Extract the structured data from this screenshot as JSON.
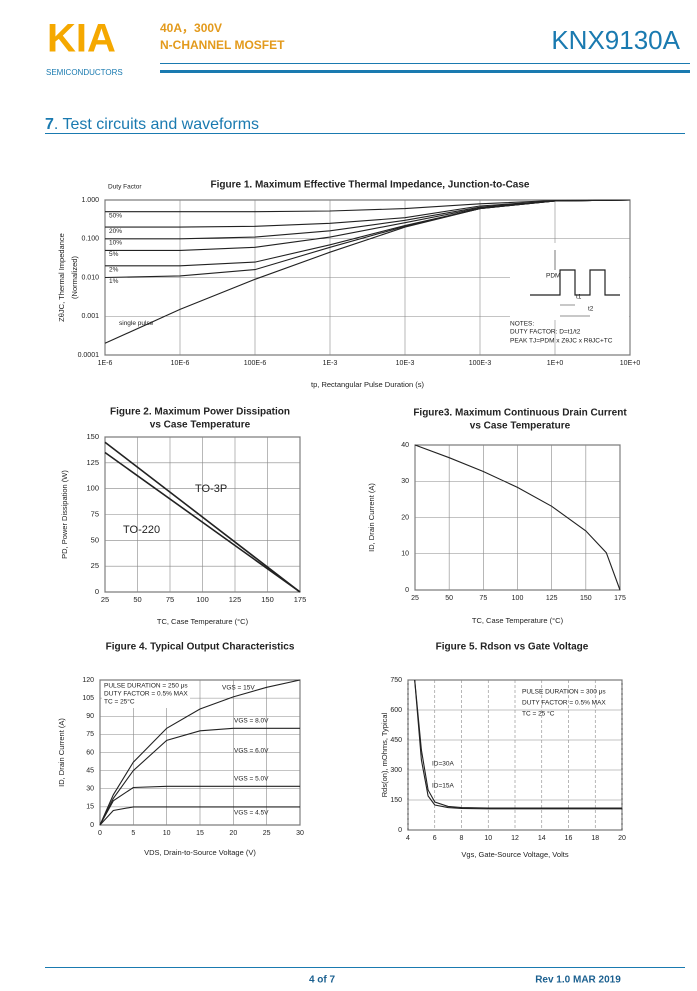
{
  "header": {
    "logo": "KIA",
    "logo_sub": "SEMICONDUCTORS",
    "rating": "40A，300V",
    "device_type": "N-CHANNEL MOSFET",
    "part_number": "KNX9130A"
  },
  "section": {
    "number": "7",
    "title": ". Test circuits and waveforms"
  },
  "figures": [
    {
      "type": "line",
      "title": "Figure 1. Maximum Effective Thermal Impedance, Junction-to-Case",
      "xlabel": "tp, Rectangular Pulse Duration (s)",
      "ylabel": "ZθJC, Thermal Impedance",
      "ylabel_sub": "(Normalized)",
      "xscale": "log",
      "yscale": "log",
      "grid": true,
      "color": "#222",
      "xlim": [
        1e-06,
        10
      ],
      "ylim": [
        0.0001,
        1
      ],
      "xticks": [
        {
          "value": 1e-06,
          "label": "1E-6"
        },
        {
          "value": 1e-05,
          "label": "10E-6"
        },
        {
          "value": 0.0001,
          "label": "100E-6"
        },
        {
          "value": 0.001,
          "label": "1E-3"
        },
        {
          "value": 0.01,
          "label": "10E-3"
        },
        {
          "value": 0.1,
          "label": "100E-3"
        },
        {
          "value": 1,
          "label": "1E+0"
        },
        {
          "value": 10,
          "label": "10E+0"
        }
      ],
      "yticks": [
        {
          "value": 0.0001,
          "label": "0.0001"
        },
        {
          "value": 0.001,
          "label": "0.001"
        },
        {
          "value": 0.01,
          "label": "0.010"
        },
        {
          "value": 0.1,
          "label": "0.100"
        },
        {
          "value": 1,
          "label": "1.000"
        }
      ],
      "series": [
        {
          "name": "50%",
          "x": [
            1e-06,
            1e-05,
            0.0001,
            0.001,
            0.01,
            0.1,
            1,
            10
          ],
          "values": [
            0.5,
            0.5,
            0.5,
            0.52,
            0.6,
            0.8,
            0.97,
            1.0
          ]
        },
        {
          "name": "20%",
          "x": [
            1e-06,
            1e-05,
            0.0001,
            0.001,
            0.01,
            0.1,
            1,
            10
          ],
          "values": [
            0.2,
            0.2,
            0.21,
            0.25,
            0.35,
            0.7,
            0.95,
            1.0
          ]
        },
        {
          "name": "10%",
          "x": [
            1e-06,
            1e-05,
            0.0001,
            0.001,
            0.01,
            0.1,
            1,
            10
          ],
          "values": [
            0.1,
            0.1,
            0.11,
            0.16,
            0.3,
            0.65,
            0.95,
            1.0
          ]
        },
        {
          "name": "5%",
          "x": [
            1e-06,
            1e-05,
            0.0001,
            0.001,
            0.01,
            0.1,
            1,
            10
          ],
          "values": [
            0.05,
            0.05,
            0.06,
            0.11,
            0.26,
            0.62,
            0.95,
            1.0
          ]
        },
        {
          "name": "2%",
          "x": [
            1e-06,
            1e-05,
            0.0001,
            0.001,
            0.01,
            0.1,
            1,
            10
          ],
          "values": [
            0.02,
            0.02,
            0.025,
            0.07,
            0.22,
            0.6,
            0.95,
            1.0
          ]
        },
        {
          "name": "1%",
          "x": [
            1e-06,
            1e-05,
            0.0001,
            0.001,
            0.01,
            0.1,
            1,
            10
          ],
          "values": [
            0.01,
            0.011,
            0.016,
            0.06,
            0.21,
            0.6,
            0.95,
            1.0
          ]
        },
        {
          "name": "single pulse",
          "x": [
            1e-06,
            1e-05,
            0.0001,
            0.001,
            0.01,
            0.1,
            1,
            10
          ],
          "values": [
            0.0002,
            0.0015,
            0.009,
            0.045,
            0.2,
            0.6,
            0.95,
            1.0
          ]
        }
      ],
      "annotations": [
        "Duty Factor",
        "NOTES:",
        "DUTY FACTOR: D=t1/t2",
        "PEAK TJ=PDM x ZθJC x RθJC+TC",
        "PDM",
        "t1",
        "t2"
      ]
    },
    {
      "type": "line",
      "title": "Figure 2.  Maximum Power Dissipation",
      "subtitle": "vs Case Temperature",
      "xlabel": "TC, Case Temperature (°C)",
      "ylabel": "PD, Power Dissipation (W)",
      "xscale": "linear",
      "yscale": "linear",
      "grid": true,
      "color": "#222",
      "xlim": [
        25,
        175
      ],
      "ylim": [
        0,
        150
      ],
      "xticks": [
        25,
        50,
        75,
        100,
        125,
        150,
        175
      ],
      "yticks": [
        0,
        25,
        50,
        75,
        100,
        125,
        150
      ],
      "series": [
        {
          "name": "TO-3P",
          "x": [
            25,
            175
          ],
          "values": [
            145,
            0
          ]
        },
        {
          "name": "TO-220",
          "x": [
            25,
            175
          ],
          "values": [
            135,
            0
          ]
        }
      ]
    },
    {
      "type": "line",
      "title": "Figure3.  Maximum Continuous Drain Current",
      "subtitle": "vs Case Temperature",
      "xlabel": "TC, Case Temperature (°C)",
      "ylabel": "ID, Drain Current (A)",
      "xscale": "linear",
      "yscale": "linear",
      "grid": true,
      "color": "#222",
      "xlim": [
        25,
        175
      ],
      "ylim": [
        0,
        40
      ],
      "xticks": [
        25,
        50,
        75,
        100,
        125,
        150,
        175
      ],
      "yticks": [
        0,
        10,
        20,
        30,
        40
      ],
      "series": [
        {
          "x": [
            25,
            50,
            75,
            100,
            125,
            150,
            165,
            175
          ],
          "values": [
            40,
            36.5,
            32.7,
            28.3,
            23.1,
            16.3,
            10.3,
            0
          ]
        }
      ]
    },
    {
      "type": "line",
      "title": "Figure 4.  Typical Output Characteristics",
      "xlabel": "VDS, Drain-to-Source Voltage (V)",
      "ylabel": "ID, Drain Current (A)",
      "xscale": "linear",
      "yscale": "linear",
      "grid": true,
      "color": "#222",
      "xlim": [
        0,
        30
      ],
      "ylim": [
        0,
        120
      ],
      "xticks": [
        0,
        5,
        10,
        15,
        20,
        25,
        30
      ],
      "yticks": [
        0,
        15,
        30,
        45,
        60,
        75,
        90,
        105,
        120
      ],
      "series": [
        {
          "name": "VGS = 15V",
          "x": [
            0,
            2,
            5,
            10,
            15,
            20,
            25,
            30
          ],
          "values": [
            0,
            25,
            52,
            80,
            96,
            106,
            114,
            120
          ]
        },
        {
          "name": "VGS = 8.0V",
          "x": [
            0,
            2,
            5,
            10,
            15,
            20,
            25,
            30
          ],
          "values": [
            0,
            22,
            45,
            70,
            78,
            80,
            80,
            80
          ]
        },
        {
          "name": "VGS = 5.0V",
          "x": [
            0,
            2,
            5,
            10,
            15,
            20,
            25,
            30
          ],
          "values": [
            0,
            20,
            31,
            32,
            32,
            32,
            32,
            32
          ]
        },
        {
          "name": "VGS = 4.5V",
          "x": [
            0,
            2,
            5,
            10,
            15,
            20,
            25,
            30
          ],
          "values": [
            0,
            12,
            15,
            15,
            15,
            15,
            15,
            15
          ]
        }
      ],
      "annotations": [
        "PULSE DURATION = 250 μs",
        "DUTY FACTOR = 0.5% MAX",
        "TC = 25°C",
        "VGS = 6.0V"
      ]
    },
    {
      "type": "line",
      "title": "Figure 5.  Rdson vs Gate Voltage",
      "xlabel": "Vgs, Gate-Source Voltage, Volts",
      "ylabel": "Rds(on), mOhms, Typical",
      "xscale": "linear",
      "yscale": "linear",
      "grid": true,
      "color": "#222",
      "xlim": [
        4,
        20
      ],
      "ylim": [
        0,
        750
      ],
      "xticks": [
        4,
        6,
        8,
        10,
        12,
        14,
        16,
        18,
        20
      ],
      "yticks": [
        0,
        150,
        300,
        450,
        600,
        750
      ],
      "series": [
        {
          "name": "ID=30A",
          "x": [
            4.5,
            5,
            5.5,
            6,
            7,
            8,
            10,
            14,
            20
          ],
          "values": [
            750,
            400,
            200,
            140,
            118,
            112,
            110,
            110,
            110
          ]
        },
        {
          "name": "ID=15A",
          "x": [
            4.5,
            5,
            5.5,
            6,
            7,
            8,
            10,
            14,
            20
          ],
          "values": [
            750,
            350,
            170,
            125,
            112,
            108,
            106,
            106,
            106
          ]
        }
      ],
      "annotations": [
        "PULSE DURATION = 300 μs",
        "DUTY FACTOR = 0.5% MAX",
        "TC = 25 °C"
      ]
    }
  ],
  "footer": {
    "page": "4 of 7",
    "revision": "Rev 1.0 MAR 2019"
  }
}
